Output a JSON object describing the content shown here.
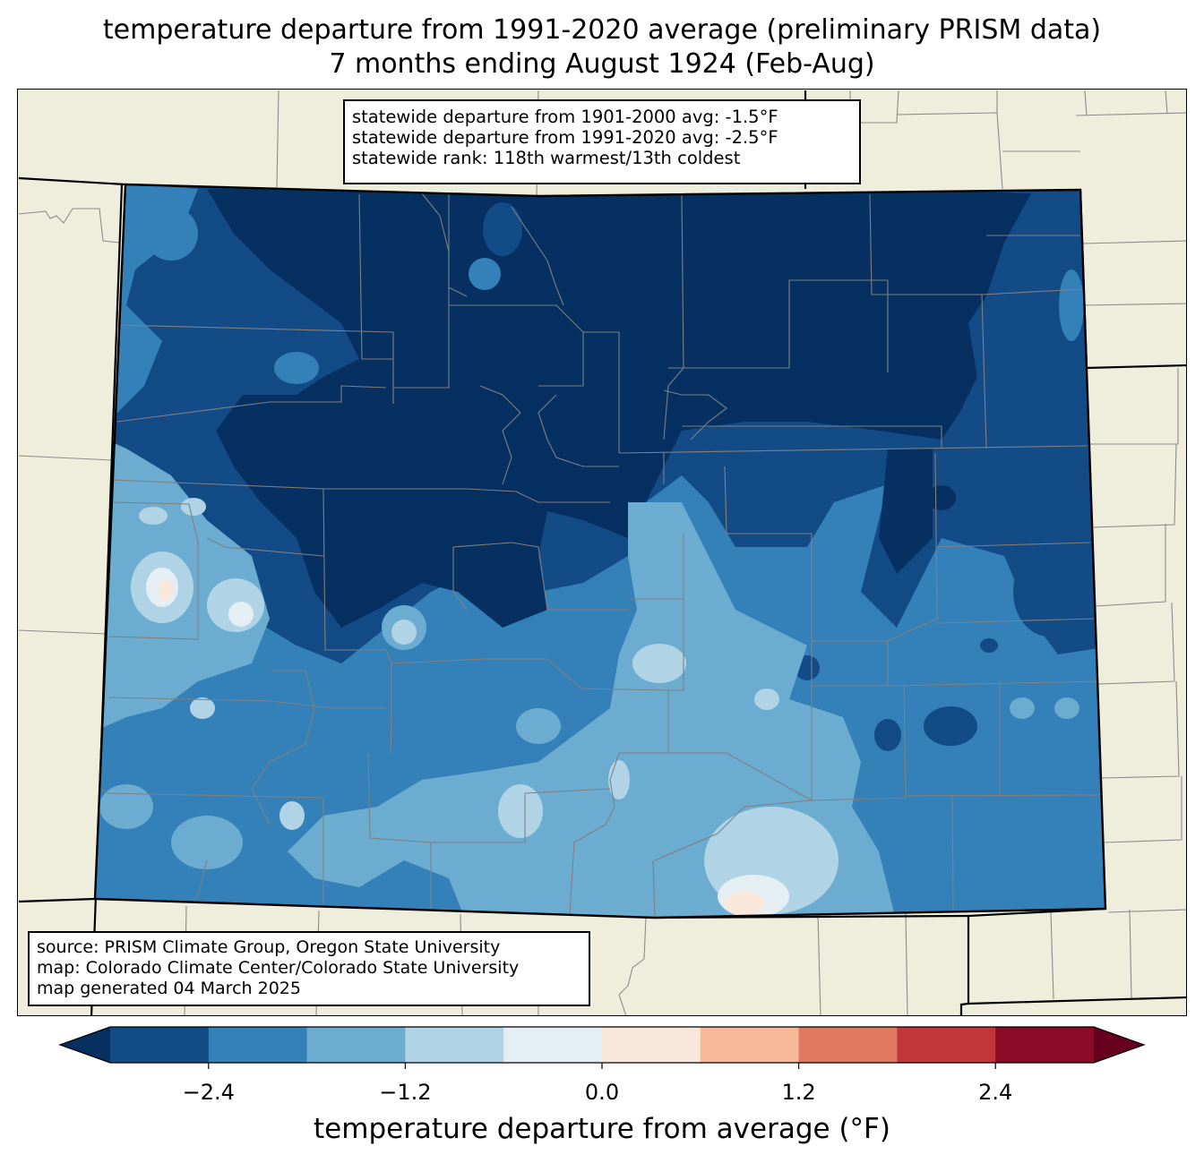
{
  "title": {
    "line1": "temperature departure from 1991-2020 average (preliminary PRISM data)",
    "line2": "7 months ending August 1924 (Feb-Aug)"
  },
  "stats": {
    "line1": "statewide departure from 1901-2000 avg: -1.5°F",
    "line2": "statewide departure from 1991-2020 avg: -2.5°F",
    "line3": "statewide rank: 118th warmest/13th coldest"
  },
  "source": {
    "line1": "source: PRISM Climate Group, Oregon State University",
    "line2": "map: Colorado Climate Center/Colorado State University",
    "line3": "map generated 04 March 2025"
  },
  "colorbar": {
    "label": "temperature departure from average (°F)",
    "ticks": [
      "−2.4",
      "−1.2",
      "0.0",
      "1.2",
      "2.4"
    ],
    "tick_values": [
      -2.4,
      -1.2,
      0.0,
      1.2,
      2.4
    ],
    "range": [
      -3.0,
      3.0
    ],
    "step": 0.6,
    "under_color": "#053061",
    "over_color": "#67001f",
    "colors": [
      "#134b87",
      "#3480b9",
      "#6bacd0",
      "#b0d4e6",
      "#e4eef3",
      "#fae7dc",
      "#f7b799",
      "#e0795f",
      "#c13639",
      "#8a0b25"
    ]
  },
  "map": {
    "background_color": "#efeedc",
    "boundary_color": "#000000",
    "county_color": "#808080"
  }
}
